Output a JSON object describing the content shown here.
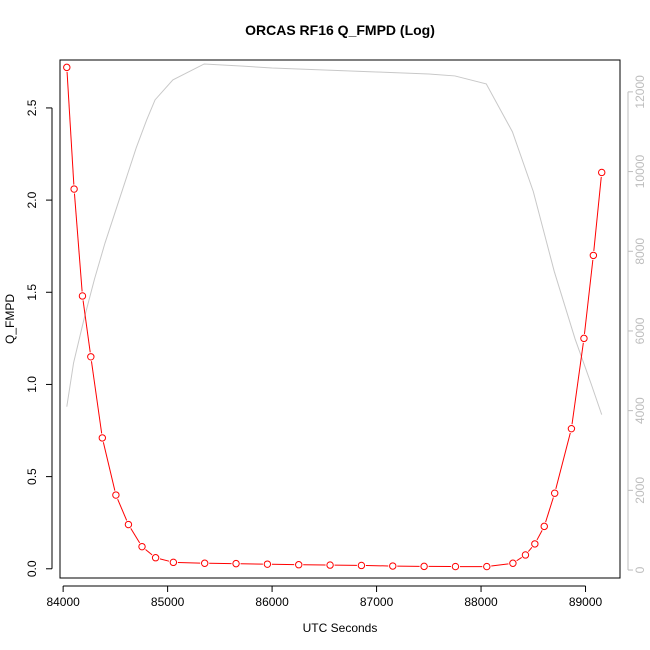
{
  "chart_data": {
    "type": "line",
    "title": "ORCAS RF16 Q_FMPD (Log)",
    "xlabel": "UTC Seconds",
    "ylabel": "Q_FMPD",
    "xlim": [
      83970,
      89330
    ],
    "ylim": [
      -0.05,
      2.76
    ],
    "y2lim": [
      -200,
      12800
    ],
    "x_ticks": [
      84000,
      85000,
      86000,
      87000,
      88000,
      89000
    ],
    "y_ticks": [
      0.0,
      0.5,
      1.0,
      1.5,
      2.0,
      2.5
    ],
    "y_tick_labels": [
      "0.0",
      "0.5",
      "1.0",
      "1.5",
      "2.0",
      "2.5"
    ],
    "y2_ticks": [
      0,
      2000,
      4000,
      6000,
      8000,
      10000,
      12000
    ],
    "grid": false,
    "series": [
      {
        "axis": "left",
        "color": "#ff0000",
        "marker": "open-circle",
        "x": [
          84035,
          84105,
          84185,
          84265,
          84375,
          84505,
          84625,
          84755,
          84885,
          85055,
          85355,
          85655,
          85955,
          86255,
          86555,
          86855,
          87155,
          87455,
          87755,
          88055,
          88305,
          88425,
          88515,
          88605,
          88705,
          88865,
          88985,
          89075,
          89155
        ],
        "y": [
          2.72,
          2.06,
          1.48,
          1.15,
          0.71,
          0.4,
          0.24,
          0.12,
          0.06,
          0.035,
          0.03,
          0.028,
          0.025,
          0.022,
          0.02,
          0.018,
          0.015,
          0.013,
          0.012,
          0.012,
          0.03,
          0.075,
          0.135,
          0.23,
          0.41,
          0.76,
          1.25,
          1.7,
          2.15
        ]
      },
      {
        "axis": "right",
        "color": "#c8c8c8",
        "marker": "none",
        "x": [
          84035,
          84100,
          84200,
          84300,
          84400,
          84500,
          84600,
          84700,
          84800,
          84880,
          85050,
          85350,
          85700,
          86000,
          86500,
          87000,
          87500,
          87750,
          88050,
          88300,
          88500,
          88700,
          88900,
          89050,
          89155
        ],
        "y": [
          4100,
          5200,
          6300,
          7300,
          8200,
          9000,
          9800,
          10600,
          11300,
          11800,
          12300,
          12700,
          12650,
          12600,
          12550,
          12500,
          12450,
          12400,
          12200,
          11000,
          9500,
          7500,
          5800,
          4700,
          3900
        ]
      }
    ]
  }
}
